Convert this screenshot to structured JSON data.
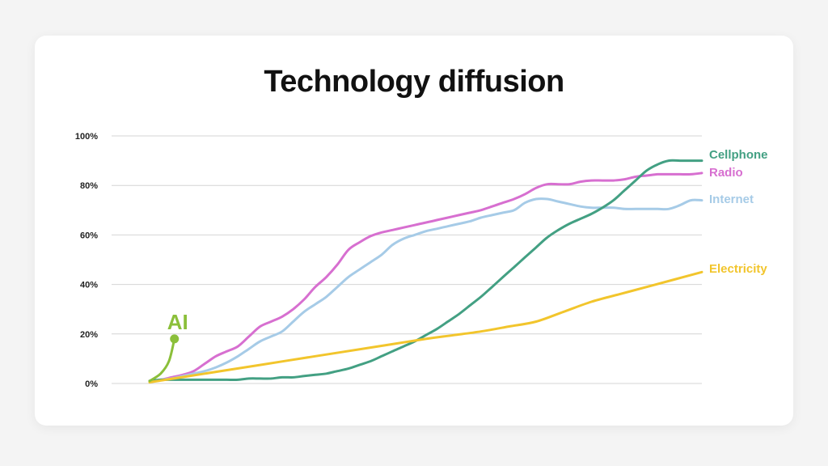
{
  "chart_data": {
    "type": "line",
    "title": "Technology diffusion",
    "xlabel": "",
    "ylabel": "",
    "ylim": [
      0,
      100
    ],
    "y_ticks": [
      {
        "value": 0,
        "label": "0%"
      },
      {
        "value": 20,
        "label": "20%"
      },
      {
        "value": 40,
        "label": "40%"
      },
      {
        "value": 60,
        "label": "60%"
      },
      {
        "value": 80,
        "label": "80%"
      },
      {
        "value": 100,
        "label": "100%"
      }
    ],
    "grid": "horizontal",
    "legend": "inline-right",
    "series": [
      {
        "name": "Radio",
        "color": "#d76fd0",
        "x": [
          0,
          2,
          4,
          6,
          8,
          10,
          12,
          14,
          16,
          18,
          20,
          22,
          24,
          26,
          28,
          30,
          32,
          34,
          36,
          38,
          40,
          42,
          44,
          46,
          48,
          50,
          52,
          54,
          56,
          58,
          60,
          62,
          64,
          66,
          68,
          70,
          72,
          74,
          76,
          78,
          80,
          82,
          84,
          86,
          88,
          90,
          92,
          94,
          96,
          98,
          100
        ],
        "values": [
          1,
          1.5,
          2.5,
          3.5,
          5,
          8,
          11,
          13,
          15,
          19,
          23,
          25,
          27,
          30,
          34,
          39,
          43,
          48,
          54,
          57,
          59.5,
          61,
          62,
          63,
          64,
          65,
          66,
          67,
          68,
          69,
          70,
          71.5,
          73,
          74.5,
          76.5,
          79,
          80.5,
          80.5,
          80.5,
          81.5,
          82,
          82,
          82,
          82.5,
          83.5,
          84,
          84.5,
          84.5,
          84.5,
          84.5,
          85
        ]
      },
      {
        "name": "Internet",
        "color": "#a6cbe7",
        "x": [
          0,
          2,
          4,
          6,
          8,
          10,
          12,
          14,
          16,
          18,
          20,
          22,
          24,
          26,
          28,
          30,
          32,
          34,
          36,
          38,
          40,
          42,
          44,
          46,
          48,
          50,
          52,
          54,
          56,
          58,
          60,
          62,
          64,
          66,
          68,
          70,
          72,
          74,
          76,
          78,
          80,
          82,
          84,
          86,
          88,
          90,
          92,
          94,
          96,
          98,
          100
        ],
        "values": [
          1,
          1.5,
          2,
          3,
          4,
          5,
          6.5,
          8.5,
          11,
          14,
          17,
          19,
          21,
          25,
          29,
          32,
          35,
          39,
          43,
          46,
          49,
          52,
          56,
          58.5,
          60,
          61.5,
          62.5,
          63.5,
          64.5,
          65.5,
          67,
          68,
          69,
          70,
          73,
          74.5,
          74.5,
          73.5,
          72.5,
          71.5,
          71,
          71,
          71,
          70.5,
          70.5,
          70.5,
          70.5,
          70.5,
          72,
          74,
          74
        ]
      },
      {
        "name": "Cellphone",
        "color": "#43a083",
        "x": [
          0,
          2,
          4,
          6,
          8,
          10,
          12,
          14,
          16,
          18,
          20,
          22,
          24,
          26,
          28,
          30,
          32,
          34,
          36,
          38,
          40,
          42,
          44,
          46,
          48,
          50,
          52,
          54,
          56,
          58,
          60,
          62,
          64,
          66,
          68,
          70,
          72,
          74,
          76,
          78,
          80,
          82,
          84,
          86,
          88,
          90,
          92,
          94,
          96,
          98,
          100
        ],
        "values": [
          1,
          1.5,
          1.5,
          1.5,
          1.5,
          1.5,
          1.5,
          1.5,
          1.5,
          2,
          2,
          2,
          2.5,
          2.5,
          3,
          3.5,
          4,
          5,
          6,
          7.5,
          9,
          11,
          13,
          15,
          17,
          19.5,
          22,
          25,
          28,
          31.5,
          35,
          39,
          43,
          47,
          51,
          55,
          59,
          62,
          64.5,
          66.5,
          68.5,
          71,
          74,
          78,
          82,
          86,
          88.5,
          90,
          90,
          90,
          90
        ]
      },
      {
        "name": "Electricity",
        "color": "#f2c52c",
        "x": [
          0,
          10,
          20,
          30,
          40,
          50,
          55,
          60,
          65,
          70,
          75,
          80,
          85,
          90,
          95,
          100
        ],
        "values": [
          0.5,
          4,
          7.5,
          11,
          14.5,
          18,
          19.5,
          21,
          23,
          25,
          29,
          33,
          36,
          39,
          42,
          45
        ]
      }
    ],
    "annotation": {
      "label": "AI",
      "color": "#8bbf3a",
      "points": [
        [
          0,
          1
        ],
        [
          2,
          4
        ],
        [
          3.5,
          9
        ],
        [
          4.5,
          18
        ]
      ]
    }
  }
}
